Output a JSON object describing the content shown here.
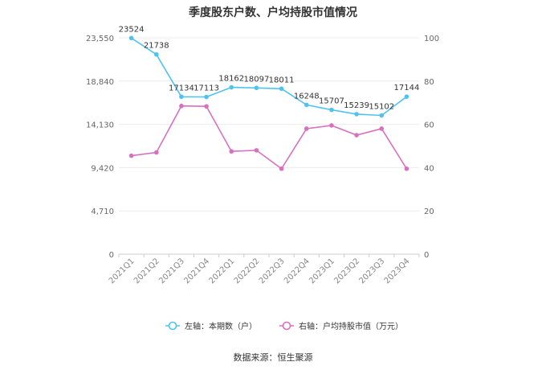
{
  "chart_data": {
    "type": "line",
    "title": "季度股东户数、户均持股市值情况",
    "categories": [
      "2021Q1",
      "2021Q2",
      "2021Q3",
      "2021Q4",
      "2022Q1",
      "2022Q2",
      "2022Q3",
      "2022Q4",
      "2023Q1",
      "2023Q2",
      "2023Q3",
      "2023Q4"
    ],
    "left_axis": {
      "ylim": [
        0,
        23550
      ],
      "ticks": [
        0,
        4710,
        9420,
        14130,
        18840,
        23550
      ],
      "tick_labels": [
        "0",
        "4,710",
        "9,420",
        "14,130",
        "18,840",
        "23,550"
      ]
    },
    "right_axis": {
      "ylim": [
        0,
        100
      ],
      "ticks": [
        0,
        20,
        40,
        60,
        80,
        100
      ],
      "tick_labels": [
        "0",
        "20",
        "40",
        "60",
        "80",
        "100"
      ]
    },
    "series": [
      {
        "name": "左轴：本期数（户）",
        "axis": "left",
        "color": "#4fc3f0",
        "values": [
          23524,
          21738,
          17134,
          17113,
          18162,
          18097,
          18011,
          16248,
          15707,
          15239,
          15102,
          17144
        ],
        "labels": [
          "23524",
          "21738",
          "17134",
          "17113",
          "18162",
          "18097",
          "18011",
          "16248",
          "15707",
          "15239",
          "15102",
          "17144"
        ]
      },
      {
        "name": "右轴：户均持股市值（万元）",
        "axis": "right",
        "color": "#d86fbf",
        "values": [
          45.5,
          47,
          68.5,
          68.3,
          47.5,
          48,
          39.5,
          58,
          59.5,
          55,
          58,
          39.5
        ]
      }
    ],
    "legend_position": "bottom",
    "grid": true
  },
  "source_text": "数据来源：恒生聚源"
}
